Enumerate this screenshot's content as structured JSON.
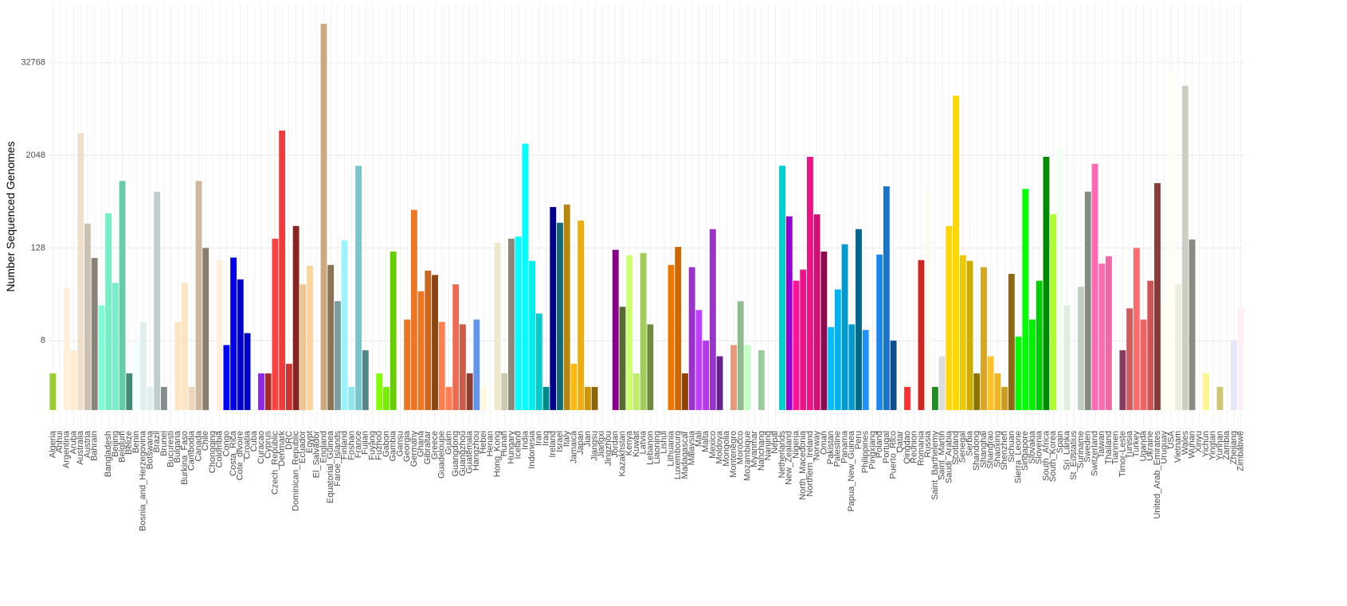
{
  "chart_data": {
    "type": "bar",
    "y_label": "Number Sequenced Genomes",
    "y_scale": "log2",
    "grid": true,
    "ylim": [
      0.62,
      190000
    ],
    "yticks": [
      8,
      128,
      2048,
      32768
    ],
    "categories": [
      "Algeria",
      "Anhui",
      "Argentina",
      "Aruba",
      "Australia",
      "Austria",
      "Bahrain",
      null,
      "Bangladesh",
      "Beijing",
      "Belgium",
      "Belize",
      "Benin",
      "Bosnia_and_Herzegovina",
      "Botswana",
      "Brazil",
      "Brunei",
      "Bucuresti",
      "Bulgaria",
      "Burkina_Faso",
      "Cambodia",
      "Canada",
      "Chile",
      "Chongqing",
      "Colombia",
      "Congo",
      "Costa_Rica",
      "Cote_dIvoire",
      "Croatia",
      "Cuba",
      "Curacao",
      "Cyprus",
      "Czech_Republic",
      "Denmark",
      "DRC",
      "Dominican_Republic",
      "Ecuador",
      "Egypt",
      "El_Salvador",
      "England",
      "Equatorial_Guinea",
      "Faroe_Islands",
      "Finland",
      "Foshan",
      "France",
      "Fujian",
      "Fuyang",
      "Fuzhou",
      "Gabon",
      "Gambia",
      "Gansu",
      "Georgia",
      "Germany",
      "Ghana",
      "Gibraltar",
      "Greece",
      "Guadeloupe",
      "Guam",
      "Guangdong",
      "Guangzhou",
      "Guatemala",
      "Hangzhou",
      "Hebei",
      "Henan",
      "Hong_Kong",
      "Hunan",
      "Hungary",
      "Iceland",
      "India",
      "Indonesia",
      "Iran",
      "Iraq",
      "Ireland",
      "Israel",
      "Italy",
      "Jamaica",
      "Japan",
      "Jian",
      "Jiangsu",
      "Jiangxi",
      "Jingzhou",
      "Jordan",
      "Kazakhstan",
      "Kenya",
      "Kuwait",
      "Latvia",
      "Lebanon",
      "Liaoning",
      "Lishui",
      "Lithuania",
      "Luxembourg",
      "Madagascar",
      "Malaysia",
      "Mali",
      "Malta",
      "Mexico",
      "Moldova",
      "Mongolia",
      "Montenegro",
      "Morocco",
      "Mozambique",
      "Myanmar",
      "Nanchang",
      "Nanjing",
      "Nepal",
      "Netherlands",
      "New_Zealand",
      "Nigeria",
      "North_Macedonia",
      "Northern_Ireland",
      "Norway",
      "Oman",
      "Pakistan",
      "Palestine",
      "Panama",
      "Papua_New_Guinea",
      "Peru",
      "Philippines",
      "Pingxiang",
      "Poland",
      "Portugal",
      "Puerto_Rico",
      "Qatar",
      "Qingdao",
      "Reunion",
      "Romania",
      "Russia",
      "Saint_Barthelemy",
      "Saint_Martin",
      "Saudi_Arabia",
      "Scotland",
      "Senegal",
      "Serbia",
      "Shandong",
      "Shanghai",
      "Shangrao",
      "Shaoxing",
      "Shenzhen",
      "Sichuan",
      "Sierra_Leone",
      "Singapore",
      "Slovakia",
      "Slovenia",
      "South_Africa",
      "South_Korea",
      "Spain",
      "Sri_Lanka",
      "St_Eustatius",
      "Suriname",
      "Sweden",
      "Switzerland",
      "Taiwan",
      "Thailand",
      "Tianmen",
      "Timor-Leste",
      "Tunisia",
      "Turkey",
      "Uganda",
      "Ukraine",
      "United_Arab_Emirates",
      "Uruguay",
      "USA",
      "Vietnam",
      "Wales",
      "Wuhan",
      "Xinyu",
      "Yichun",
      "Yingtan",
      "Yunnan",
      "Zambia",
      "Zhejiang",
      "Zimbabwe"
    ],
    "values": [
      3,
      1,
      38,
      6,
      4000,
      265,
      95,
      23,
      362,
      45,
      950,
      3,
      8,
      14,
      2,
      690,
      2,
      1,
      14,
      45,
      2,
      950,
      128,
      1,
      89,
      7,
      96,
      50,
      10,
      1,
      3,
      3,
      169,
      4300,
      4,
      247,
      43,
      75,
      1,
      105000,
      77,
      26,
      160,
      2,
      1500,
      6,
      1,
      3,
      2,
      115,
      1,
      15,
      400,
      35,
      65,
      57,
      14,
      2,
      43,
      13,
      3,
      15,
      2,
      1,
      150,
      3,
      169,
      180,
      2900,
      87,
      18,
      2,
      436,
      272,
      470,
      4,
      290,
      2,
      2,
      1,
      1,
      121,
      22,
      103,
      3,
      110,
      13,
      1,
      1,
      77,
      132,
      3,
      72,
      20,
      8,
      225,
      5,
      1,
      7,
      26,
      7,
      1,
      6,
      1,
      1,
      1500,
      330,
      48,
      67,
      1960,
      350,
      115,
      12,
      37,
      143,
      13,
      225,
      11,
      1,
      105,
      810,
      8,
      1,
      2,
      1,
      89,
      700,
      2,
      5,
      247,
      12200,
      103,
      87,
      3,
      72,
      5,
      3,
      2,
      59,
      9,
      750,
      15,
      48,
      1960,
      350,
      2600,
      23,
      1,
      40,
      690,
      1590,
      80,
      100,
      1,
      6,
      21,
      128,
      15,
      48,
      890,
      25,
      25000,
      43,
      16400,
      165,
      1,
      3,
      1,
      2,
      1,
      8,
      22
    ],
    "colors": [
      "#9acd32",
      "#fff8dc",
      "#ffefdb",
      "#ffebcd",
      "#eedfcc",
      "#cdc0b0",
      "#8b8378",
      "#7fffd4",
      "#76eec6",
      "#76eec6",
      "#66cdaa",
      "#458b74",
      "#f0ffff",
      "#e0eeee",
      "#e0eeee",
      "#c1cdcd",
      "#838b8b",
      "#ffe4c4",
      "#ffe4c4",
      "#ffe4c4",
      "#eed5b7",
      "#cdb79e",
      "#8b7d6b",
      "#ffebcd",
      "#fff0db",
      "#0000ff",
      "#0000ee",
      "#0000cd",
      "#0000cd",
      "#8a2be2",
      "#8a2be2",
      "#a52a2a",
      "#ff4040",
      "#ee3b3b",
      "#cd3333",
      "#8b2323",
      "#eec591",
      "#ffd39b",
      "#deb887",
      "#cdaa7d",
      "#8b7355",
      "#7a9e9f",
      "#98f5ff",
      "#8ee5ee",
      "#7ac5cd",
      "#53868b",
      "#7fff00",
      "#7fff00",
      "#76ee00",
      "#66cd00",
      "#d2691e",
      "#ee7621",
      "#ee7621",
      "#ee7621",
      "#cd661d",
      "#8b4513",
      "#ff7f50",
      "#ff7f50",
      "#ee6a50",
      "#cd5b45",
      "#8b3e2f",
      "#6495ed",
      "#fff8dc",
      "#fff8dc",
      "#eee8cd",
      "#cdc8b1",
      "#8b8878",
      "#00ffff",
      "#00ffff",
      "#00eeee",
      "#00cdcd",
      "#008b8b",
      "#00008b",
      "#0f6b73",
      "#b8860b",
      "#ffb90f",
      "#eead0e",
      "#cd950c",
      "#8b6508",
      "#8b008b",
      "#8b008b",
      "#8b008b",
      "#556b2f",
      "#caff70",
      "#bcee68",
      "#a2cd5a",
      "#6e8b3d",
      "#ee7600",
      "#ee7600",
      "#ee7600",
      "#cd6600",
      "#8b4500",
      "#9932cc",
      "#bf3eff",
      "#b23aee",
      "#9a32cd",
      "#68228b",
      "#e9967a",
      "#e9967a",
      "#8fbc8f",
      "#c1ffc1",
      "#b4eeb4",
      "#9bcd9b",
      "#00ced1",
      "#00ced1",
      "#00ced1",
      "#9400d3",
      "#ff1493",
      "#ee1289",
      "#ee1289",
      "#cd1076",
      "#8b0a50",
      "#00bfff",
      "#00b2ee",
      "#009acd",
      "#009acd",
      "#00688b",
      "#1e90ff",
      "#1e90ff",
      "#1c86ee",
      "#1874cd",
      "#104e8b",
      "#ff3030",
      "#ff3030",
      "#cd2626",
      "#cd2626",
      "#fffaf0",
      "#228b22",
      "#dcdcdc",
      "#ffd700",
      "#ffd700",
      "#eec900",
      "#cdad00",
      "#8b7500",
      "#daa520",
      "#ffc125",
      "#eeb422",
      "#cd9b1d",
      "#8b6914",
      "#00ff00",
      "#00ff00",
      "#00ee00",
      "#00cd00",
      "#008b00",
      "#adff2f",
      "#f0fff0",
      "#e0eee0",
      "#e0eee0",
      "#c1cdc1",
      "#838b83",
      "#ff69b4",
      "#ff6eb4",
      "#ee6aa7",
      "#8b3a62",
      "#8b3a62",
      "#cd5c5c",
      "#ff6a6a",
      "#ee6363",
      "#cd5555",
      "#8b3a3a",
      "#fffff0",
      "#fffff0",
      "#eeeee0",
      "#cdcdc1",
      "#8b8b83",
      "#fff68f",
      "#fff68f",
      "#eee685",
      "#cdc673",
      "#e6e6fa",
      "#e6e6fa",
      "#fff0f5"
    ]
  }
}
